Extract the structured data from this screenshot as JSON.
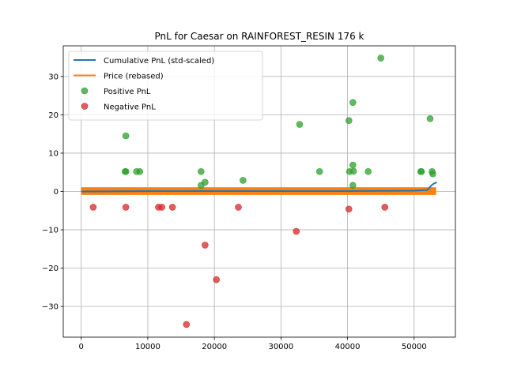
{
  "chart_data": {
    "type": "scatter",
    "title": "PnL for Caesar on RAINFOREST_RESIN 176 k",
    "xlabel": "",
    "ylabel": "",
    "xlim": [
      -2700,
      56200
    ],
    "ylim": [
      -38,
      38
    ],
    "xticks": [
      0,
      10000,
      20000,
      30000,
      40000,
      50000
    ],
    "xtick_labels": [
      "0",
      "10000",
      "20000",
      "30000",
      "40000",
      "50000"
    ],
    "yticks": [
      -30,
      -20,
      -10,
      0,
      10,
      20,
      30
    ],
    "ytick_labels": [
      "−30",
      "−20",
      "−10",
      "0",
      "10",
      "20",
      "30"
    ],
    "grid": true,
    "legend_position": "top-left",
    "series": [
      {
        "name": "Cumulative PnL (std-scaled)",
        "kind": "line",
        "color": "#1f77b4",
        "x": [
          0,
          10000,
          20000,
          30000,
          40000,
          50000,
          52000,
          52600,
          53000,
          53400
        ],
        "y": [
          0,
          0.1,
          0.1,
          0.1,
          0.1,
          0.2,
          0.4,
          1.6,
          2.1,
          2.4
        ]
      },
      {
        "name": "Price (rebased)",
        "kind": "band",
        "color": "#ff7f0e",
        "x_range": [
          0,
          53300
        ],
        "y_range": [
          -0.9,
          1.1
        ]
      },
      {
        "name": "Positive PnL",
        "kind": "scatter",
        "color": "#2ca02c",
        "points": [
          [
            6700,
            14.5
          ],
          [
            6700,
            5.2
          ],
          [
            6600,
            5.2
          ],
          [
            8300,
            5.2
          ],
          [
            8800,
            5.2
          ],
          [
            18000,
            5.2
          ],
          [
            18600,
            2.4
          ],
          [
            18000,
            1.6
          ],
          [
            24300,
            2.9
          ],
          [
            32800,
            17.5
          ],
          [
            35800,
            5.2
          ],
          [
            40200,
            18.5
          ],
          [
            40300,
            5.2
          ],
          [
            40800,
            23.2
          ],
          [
            40800,
            6.9
          ],
          [
            40900,
            5.3
          ],
          [
            40800,
            1.6
          ],
          [
            43100,
            5.2
          ],
          [
            45000,
            34.8
          ],
          [
            51000,
            5.2
          ],
          [
            51100,
            5.2
          ],
          [
            52400,
            19.0
          ],
          [
            52700,
            5.2
          ],
          [
            52800,
            4.6
          ]
        ]
      },
      {
        "name": "Negative PnL",
        "kind": "scatter",
        "color": "#d62728",
        "points": [
          [
            1800,
            -4.1
          ],
          [
            6700,
            -4.1
          ],
          [
            11600,
            -4.1
          ],
          [
            12100,
            -4.1
          ],
          [
            13700,
            -4.1
          ],
          [
            15800,
            -34.7
          ],
          [
            18600,
            -14.0
          ],
          [
            20300,
            -23.0
          ],
          [
            23600,
            -4.1
          ],
          [
            32300,
            -10.4
          ],
          [
            40200,
            -4.6
          ],
          [
            45600,
            -4.1
          ]
        ]
      }
    ]
  }
}
